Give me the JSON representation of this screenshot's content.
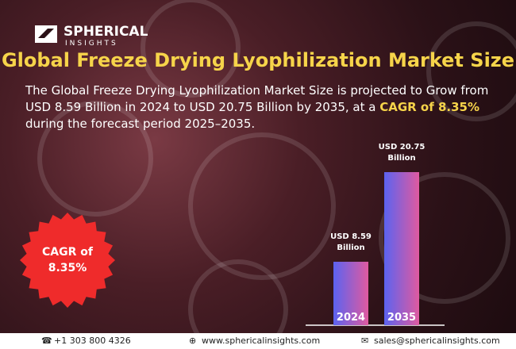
{
  "brand": {
    "name": "SPHERICAL",
    "tagline": "INSIGHTS"
  },
  "title": "Global Freeze Drying Lyophilization Market Size",
  "description": [
    "The Global Freeze Drying Lyophilization Market Size is projected to Grow from USD 8.59 Billion in 2024 to USD 20.75 Billion by 2035, at a ",
    "CAGR of 8.35%",
    " during the forecast period 2025–2035."
  ],
  "badge": "CAGR of 8.35%",
  "chart_data": {
    "type": "bar",
    "categories": [
      "2024",
      "2035"
    ],
    "values": [
      8.59,
      20.75
    ],
    "value_labels": [
      "USD 8.59 Billion",
      "USD 20.75 Billion"
    ],
    "color": [
      "#5b63f0",
      "#e05aa0"
    ]
  },
  "footer": {
    "phone": "+1 303 800 4326",
    "website": "www.sphericalinsights.com",
    "email": "sales@sphericalinsights.com"
  }
}
